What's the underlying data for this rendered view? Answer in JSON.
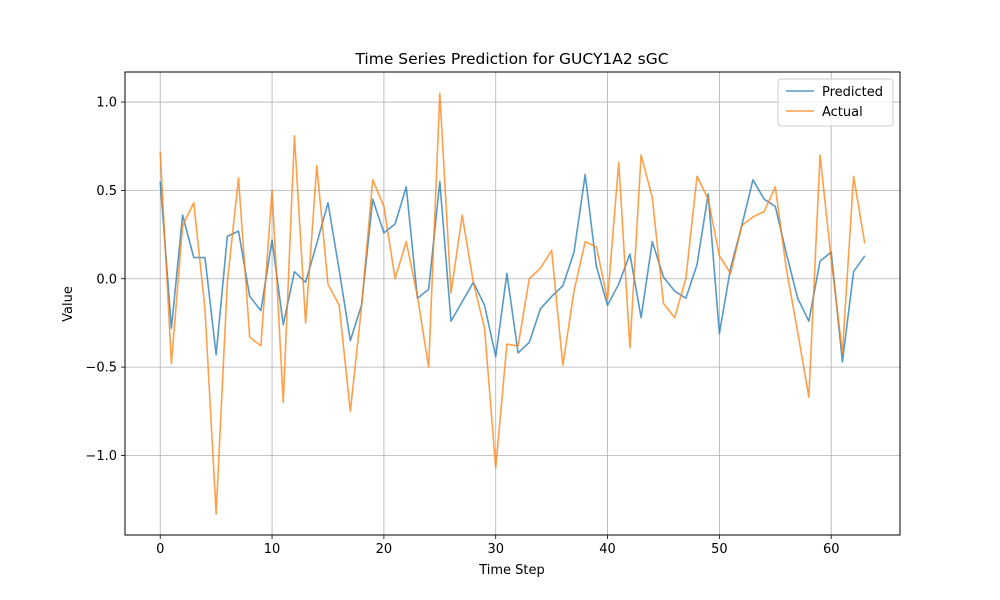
{
  "chart_data": {
    "type": "line",
    "title": "Time Series Prediction for GUCY1A2  sGC",
    "xlabel": "Time Step",
    "ylabel": "Value",
    "xlim": [
      -3.15,
      66.15
    ],
    "ylim": [
      -1.45,
      1.17
    ],
    "xticks": [
      0,
      10,
      20,
      30,
      40,
      50,
      60
    ],
    "yticks": [
      -1.0,
      -0.5,
      0.0,
      0.5,
      1.0
    ],
    "ytick_labels": [
      "−1.0",
      "−0.5",
      "0.0",
      "0.5",
      "1.0"
    ],
    "grid": true,
    "legend_position": "top-right",
    "series": [
      {
        "name": "Predicted",
        "color": "#1f77b4",
        "x": [
          0,
          1,
          2,
          3,
          4,
          5,
          6,
          7,
          8,
          9,
          10,
          11,
          12,
          13,
          14,
          15,
          16,
          17,
          18,
          19,
          20,
          21,
          22,
          23,
          24,
          25,
          26,
          27,
          28,
          29,
          30,
          31,
          32,
          33,
          34,
          35,
          36,
          37,
          38,
          39,
          40,
          41,
          42,
          43,
          44,
          45,
          46,
          47,
          48,
          49,
          50,
          51,
          52,
          53,
          54,
          55,
          56,
          57,
          58,
          59,
          60,
          61,
          62,
          63
        ],
        "values": [
          0.55,
          -0.28,
          0.36,
          0.12,
          0.12,
          -0.43,
          0.24,
          0.27,
          -0.1,
          -0.18,
          0.22,
          -0.26,
          0.04,
          -0.02,
          0.2,
          0.43,
          0.05,
          -0.35,
          -0.15,
          0.45,
          0.26,
          0.31,
          0.52,
          -0.11,
          -0.06,
          0.55,
          -0.24,
          -0.13,
          -0.02,
          -0.15,
          -0.44,
          0.03,
          -0.42,
          -0.36,
          -0.17,
          -0.1,
          -0.04,
          0.15,
          0.59,
          0.07,
          -0.15,
          -0.03,
          0.14,
          -0.22,
          0.21,
          0.01,
          -0.07,
          -0.11,
          0.08,
          0.48,
          -0.31,
          0.06,
          0.3,
          0.56,
          0.45,
          0.41,
          0.14,
          -0.11,
          -0.24,
          0.1,
          0.15,
          -0.47,
          0.04,
          0.13
        ]
      },
      {
        "name": "Actual",
        "color": "#ff7f0e",
        "x": [
          0,
          1,
          2,
          3,
          4,
          5,
          6,
          7,
          8,
          9,
          10,
          11,
          12,
          13,
          14,
          15,
          16,
          17,
          18,
          19,
          20,
          21,
          22,
          23,
          24,
          25,
          26,
          27,
          28,
          29,
          30,
          31,
          32,
          33,
          34,
          35,
          36,
          37,
          38,
          39,
          40,
          41,
          42,
          43,
          44,
          45,
          46,
          47,
          48,
          49,
          50,
          51,
          52,
          53,
          54,
          55,
          56,
          57,
          58,
          59,
          60,
          61,
          62,
          63
        ],
        "values": [
          0.72,
          -0.48,
          0.3,
          0.43,
          -0.17,
          -1.33,
          -0.02,
          0.57,
          -0.33,
          -0.38,
          0.5,
          -0.7,
          0.81,
          -0.25,
          0.64,
          -0.03,
          -0.15,
          -0.75,
          -0.16,
          0.56,
          0.41,
          0.0,
          0.21,
          -0.1,
          -0.5,
          1.05,
          -0.08,
          0.36,
          -0.02,
          -0.28,
          -1.07,
          -0.37,
          -0.38,
          0.0,
          0.06,
          0.16,
          -0.49,
          -0.07,
          0.21,
          0.18,
          -0.12,
          0.66,
          -0.39,
          0.7,
          0.46,
          -0.14,
          -0.22,
          0.0,
          0.58,
          0.45,
          0.13,
          0.03,
          0.3,
          0.35,
          0.38,
          0.52,
          0.05,
          -0.3,
          -0.67,
          0.7,
          0.11,
          -0.42,
          0.58,
          0.2
        ]
      }
    ]
  }
}
